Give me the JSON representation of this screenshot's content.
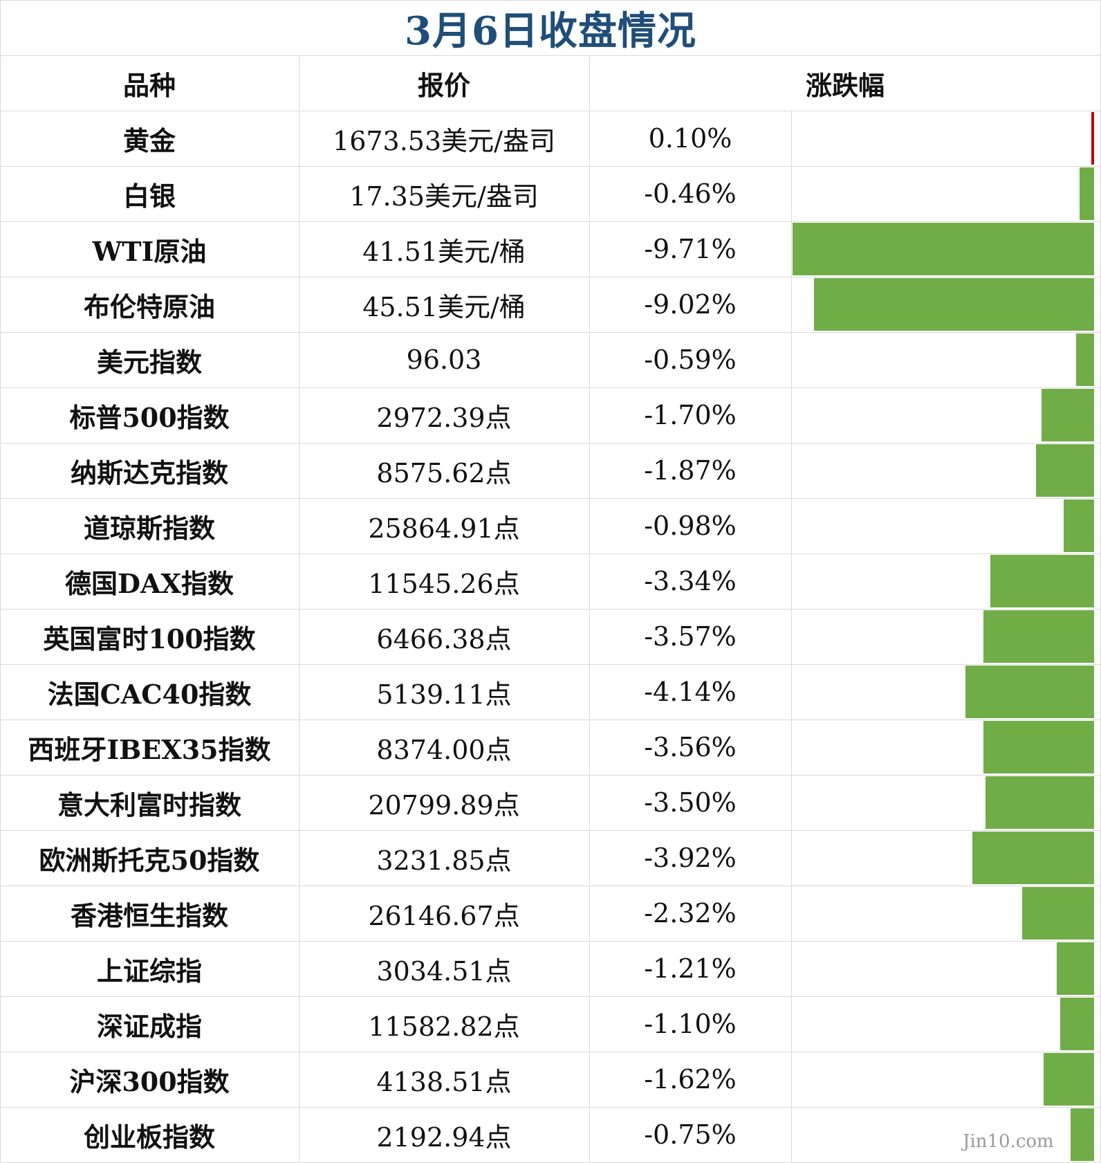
{
  "title": "3月6日收盘情况",
  "headers": {
    "name": "品种",
    "price": "报价",
    "change": "涨跌幅"
  },
  "colors": {
    "up": "#c00000",
    "down": "#70ad47",
    "title": "#1f4e79"
  },
  "chart_data": {
    "type": "bar",
    "title": "3月6日收盘情况",
    "categories": [
      "黄金",
      "白银",
      "WTI原油",
      "布伦特原油",
      "美元指数",
      "标普500指数",
      "纳斯达克指数",
      "道琼斯指数",
      "德国DAX指数",
      "英国富时100指数",
      "法国CAC40指数",
      "西班牙IBEX35指数",
      "意大利富时指数",
      "欧洲斯托克50指数",
      "香港恒生指数",
      "上证综指",
      "深证成指",
      "沪深300指数",
      "创业板指数"
    ],
    "prices": [
      "1673.53美元/盎司",
      "17.35美元/盎司",
      "41.51美元/桶",
      "45.51美元/桶",
      "96.03",
      "2972.39点",
      "8575.62点",
      "25864.91点",
      "11545.26点",
      "6466.38点",
      "5139.11点",
      "8374.00点",
      "20799.89点",
      "3231.85点",
      "26146.67点",
      "3034.51点",
      "11582.82点",
      "4138.51点",
      "2192.94点"
    ],
    "change_labels": [
      "0.10%",
      "-0.46%",
      "-9.71%",
      "-9.02%",
      "-0.59%",
      "-1.70%",
      "-1.87%",
      "-0.98%",
      "-3.34%",
      "-3.57%",
      "-4.14%",
      "-3.56%",
      "-3.50%",
      "-3.92%",
      "-2.32%",
      "-1.21%",
      "-1.10%",
      "-1.62%",
      "-0.75%"
    ],
    "values": [
      0.1,
      -0.46,
      -9.71,
      -9.02,
      -0.59,
      -1.7,
      -1.87,
      -0.98,
      -3.34,
      -3.57,
      -4.14,
      -3.56,
      -3.5,
      -3.92,
      -2.32,
      -1.21,
      -1.1,
      -1.62,
      -0.75
    ],
    "unit": "%",
    "orientation": "horizontal",
    "grid": true
  },
  "watermark": "Jin10.com"
}
